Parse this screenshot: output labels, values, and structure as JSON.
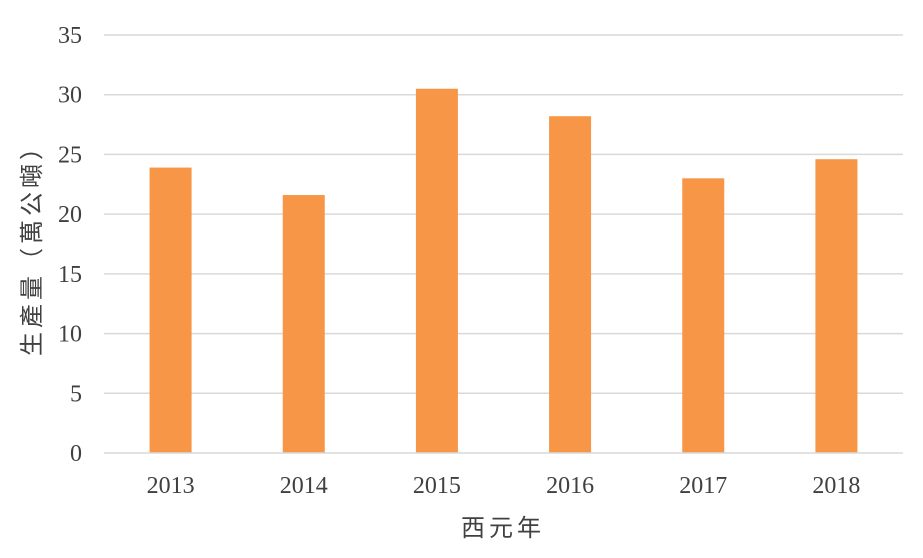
{
  "chart_data": {
    "type": "bar",
    "title": "",
    "xlabel": "西元年",
    "ylabel": "生產量（萬公噸）",
    "categories": [
      "2013",
      "2014",
      "2015",
      "2016",
      "2017",
      "2018"
    ],
    "values": [
      23.9,
      21.6,
      30.5,
      28.2,
      23.0,
      24.6
    ],
    "ylim": [
      0,
      35
    ],
    "yticks": [
      0,
      5,
      10,
      15,
      20,
      25,
      30,
      35
    ],
    "grid": true,
    "legend": "none",
    "bar_color": "#F79646",
    "grid_color": "#D9D9D9",
    "text_color": "#404040"
  }
}
